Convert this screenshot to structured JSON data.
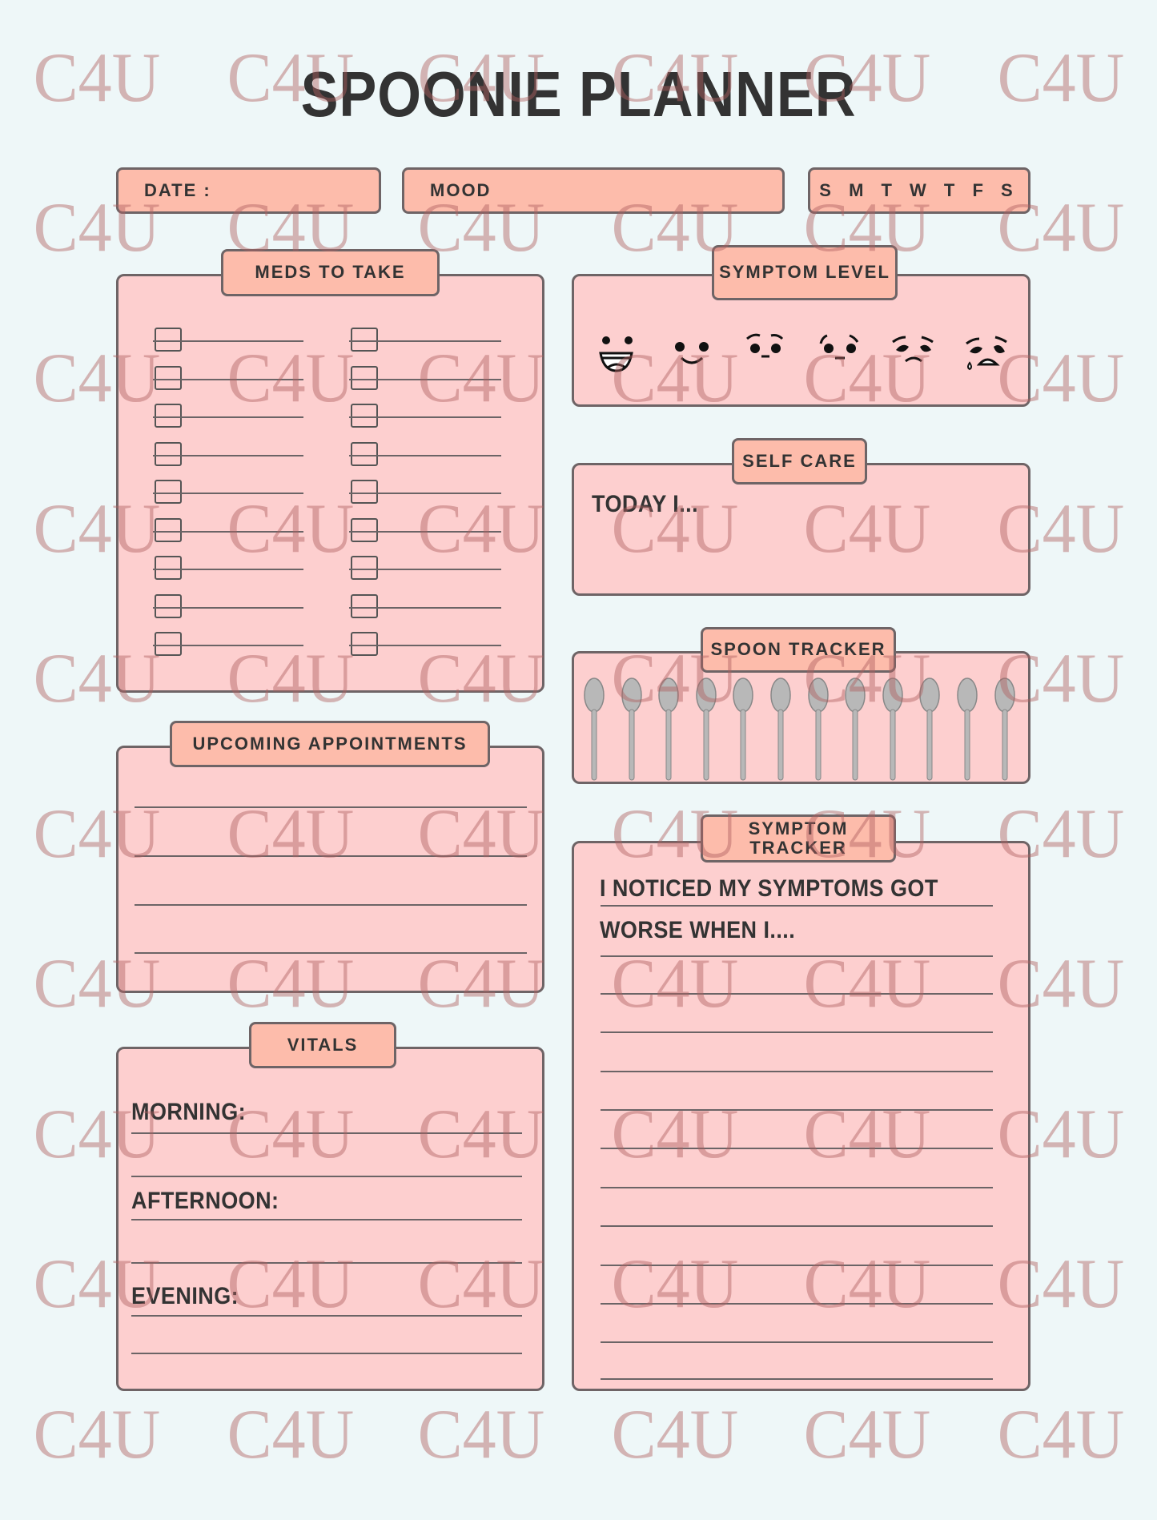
{
  "title": "SPOONIE PLANNER",
  "header": {
    "date_label": "DATE :",
    "mood_label": "MOOD",
    "days_label": "S M T W T F S"
  },
  "sections": {
    "meds": {
      "title": "MEDS TO TAKE",
      "checkbox_count": 18
    },
    "symptom_level": {
      "title": "SYMPTOM LEVEL",
      "faces": [
        "laughing-face-icon",
        "smiling-face-icon",
        "neutral-face-icon",
        "worried-face-icon",
        "sad-face-icon",
        "crying-face-icon"
      ]
    },
    "self_care": {
      "title": "SELF CARE",
      "prompt": "TODAY I..."
    },
    "spoon_tracker": {
      "title": "SPOON TRACKER",
      "spoon_count": 12
    },
    "appointments": {
      "title": "UPCOMING APPOINTMENTS"
    },
    "vitals": {
      "title": "VITALS",
      "morning": "MORNING:",
      "afternoon": "AFTERNOON:",
      "evening": "EVENING:"
    },
    "symptom_tracker": {
      "title": "SYMPTOM TRACKER",
      "prompt_line1": "I NOTICED MY SYMPTOMS GOT",
      "prompt_line2": "WORSE WHEN I...."
    }
  },
  "watermark": "C4U",
  "colors": {
    "background": "#eef7f8",
    "panel": "#fdcfcf",
    "tab": "#fdbcab",
    "border": "#6e6466",
    "text": "#333333",
    "watermark": "#b06060"
  }
}
